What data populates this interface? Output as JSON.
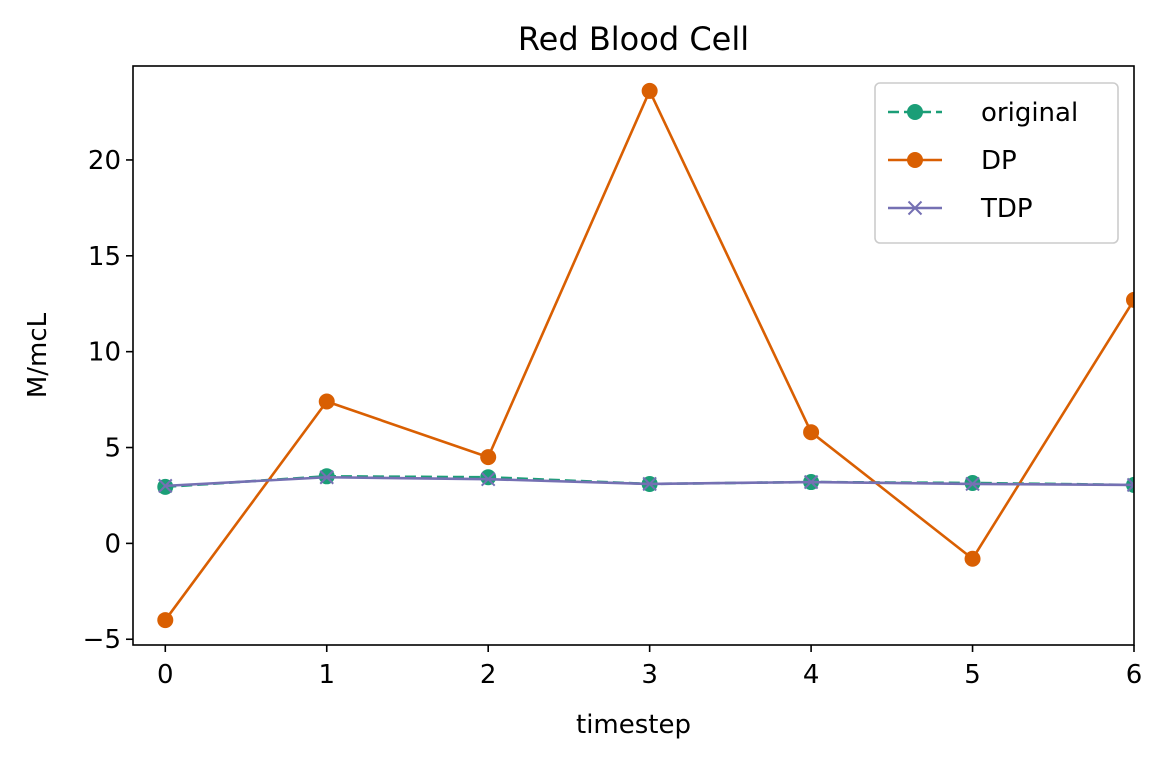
{
  "chart_data": {
    "type": "line",
    "title": "Red Blood Cell",
    "xlabel": "timestep",
    "ylabel": "M/mcL",
    "x": [
      0,
      1,
      2,
      3,
      4,
      5,
      6
    ],
    "xlim": [
      -0.2,
      6
    ],
    "ylim": [
      -5.3,
      24.9
    ],
    "xticks": [
      0,
      1,
      2,
      3,
      4,
      5,
      6
    ],
    "yticks": [
      -5,
      0,
      5,
      10,
      15,
      20
    ],
    "ytick_labels": [
      "−5",
      "0",
      "5",
      "10",
      "15",
      "20"
    ],
    "grid": false,
    "legend_position": "top-right",
    "series": [
      {
        "name": "original",
        "values": [
          2.95,
          3.5,
          3.45,
          3.1,
          3.2,
          3.15,
          3.05
        ],
        "color": "#1b9e77",
        "linestyle": "dashed",
        "marker": "circle"
      },
      {
        "name": "DP",
        "values": [
          -4.0,
          7.4,
          4.5,
          23.6,
          5.8,
          -0.8,
          12.7
        ],
        "color": "#d95f02",
        "linestyle": "solid",
        "marker": "circle"
      },
      {
        "name": "TDP",
        "values": [
          3.0,
          3.45,
          3.35,
          3.1,
          3.2,
          3.1,
          3.05
        ],
        "color": "#7570b3",
        "linestyle": "solid",
        "marker": "x"
      }
    ]
  }
}
